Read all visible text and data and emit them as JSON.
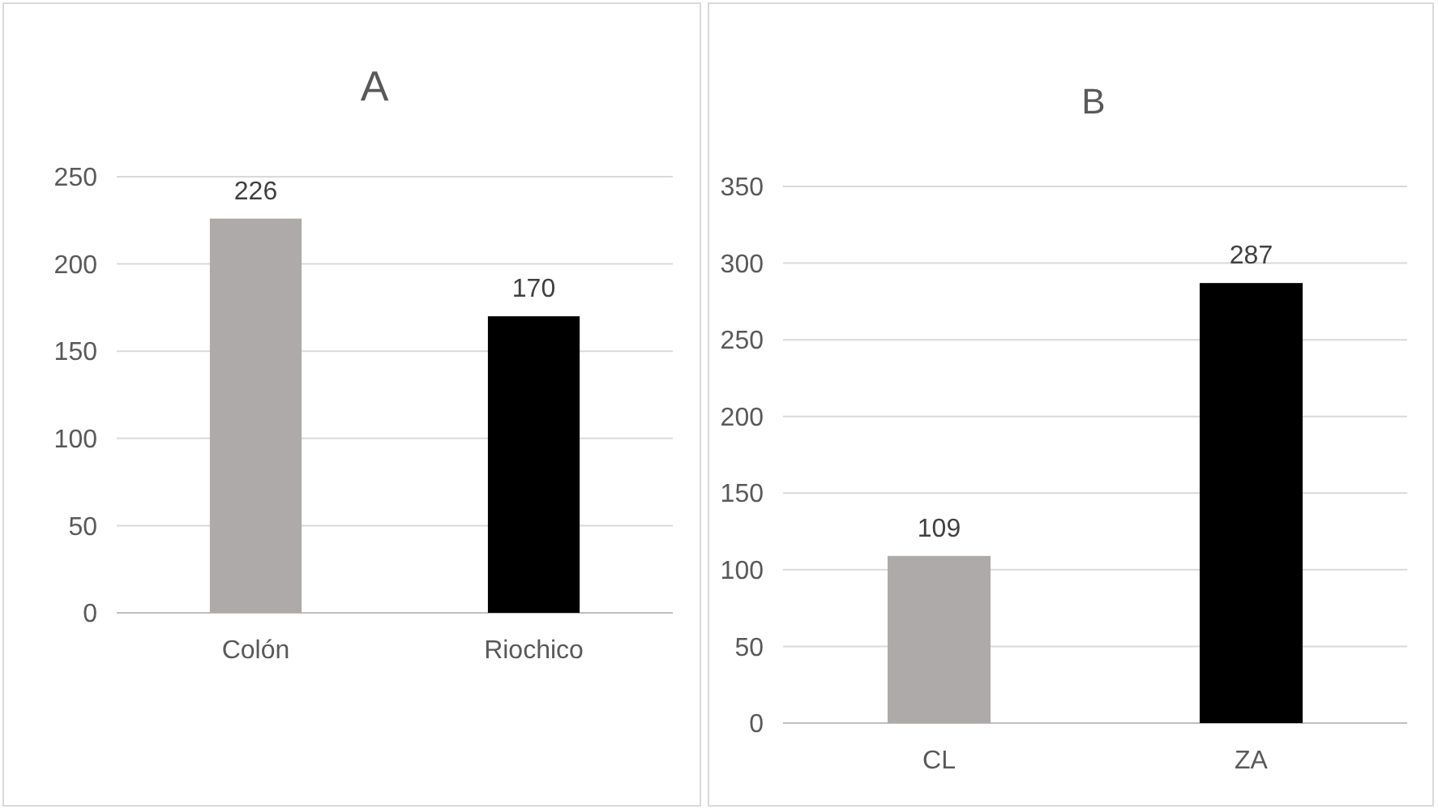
{
  "chart_data": [
    {
      "type": "bar",
      "title": "A",
      "categories": [
        "Colón",
        "Riochico"
      ],
      "values": [
        226,
        170
      ],
      "colors": [
        "#aeaaaa",
        "#000000"
      ],
      "ylim": [
        0,
        250
      ],
      "yticks": [
        0,
        50,
        100,
        150,
        200,
        250
      ],
      "grid": "y",
      "data_labels": true
    },
    {
      "type": "bar",
      "title": "B",
      "categories": [
        "CL",
        "ZA"
      ],
      "values": [
        109,
        287
      ],
      "colors": [
        "#aeaaaa",
        "#000000"
      ],
      "ylim": [
        0,
        350
      ],
      "yticks": [
        0,
        50,
        100,
        150,
        200,
        250,
        300,
        350
      ],
      "grid": "y",
      "data_labels": true
    }
  ]
}
